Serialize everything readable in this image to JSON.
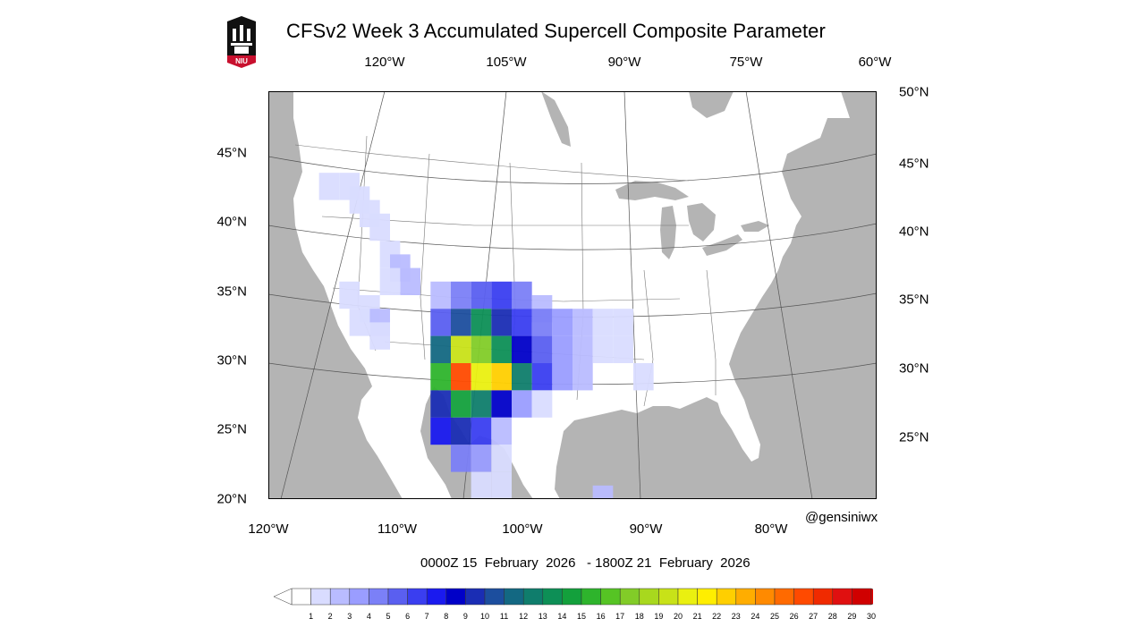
{
  "title": "CFSv2 Week 3 Accumulated Supercell Composite Parameter",
  "logo": {
    "text": "NIU",
    "icon": "niu-castle-logo"
  },
  "top_lon_labels": [
    "120°W",
    "105°W",
    "90°W",
    "75°W",
    "60°W"
  ],
  "bottom_lon_labels": [
    "120°W",
    "110°W",
    "100°W",
    "90°W",
    "80°W"
  ],
  "left_lat_labels": [
    "45°N",
    "40°N",
    "35°N",
    "30°N",
    "25°N",
    "20°N"
  ],
  "right_lat_labels": [
    "50°N",
    "45°N",
    "40°N",
    "35°N",
    "30°N",
    "25°N"
  ],
  "credit": "@gensiniwx",
  "date_range": "0000Z 15  February  2026   - 1800Z 21  February  2026",
  "colorbar": {
    "ticks": [
      "1",
      "2",
      "3",
      "4",
      "5",
      "6",
      "7",
      "8",
      "9",
      "10",
      "11",
      "12",
      "13",
      "14",
      "15",
      "16",
      "17",
      "18",
      "19",
      "20",
      "21",
      "22",
      "23",
      "24",
      "25",
      "26",
      "27",
      "28",
      "29",
      "30"
    ],
    "colors": [
      "#ffffff",
      "#d9dcff",
      "#b9bcff",
      "#9a9dff",
      "#7b80f7",
      "#5a5ff0",
      "#3a3ef0",
      "#1a1aef",
      "#0000c8",
      "#1a2db4",
      "#1c4e9e",
      "#136882",
      "#0f7d6c",
      "#0d8f56",
      "#13a03c",
      "#2eb42c",
      "#56c424",
      "#82cc28",
      "#a8d81e",
      "#c8e218",
      "#eaf010",
      "#ffee00",
      "#ffcf00",
      "#ffad00",
      "#ff8a00",
      "#ff6a00",
      "#ff4a00",
      "#f02a00",
      "#e01010",
      "#d00000"
    ],
    "range": [
      1,
      30
    ]
  },
  "map": {
    "extent": {
      "lon": [
        -120,
        -60
      ],
      "lat": [
        20,
        50
      ]
    },
    "land_color": "#ffffff",
    "ocean_color": "#b4b4b4",
    "scp_field": [
      {
        "lon": -114,
        "lat": 43,
        "v": 2
      },
      {
        "lon": -112,
        "lat": 43,
        "v": 2
      },
      {
        "lon": -111,
        "lat": 42,
        "v": 2
      },
      {
        "lon": -110,
        "lat": 41,
        "v": 2
      },
      {
        "lon": -109,
        "lat": 40,
        "v": 2
      },
      {
        "lon": -108,
        "lat": 38,
        "v": 2
      },
      {
        "lon": -107,
        "lat": 37,
        "v": 3
      },
      {
        "lon": -106,
        "lat": 36,
        "v": 3
      },
      {
        "lon": -108,
        "lat": 36,
        "v": 2
      },
      {
        "lon": -112,
        "lat": 35,
        "v": 2
      },
      {
        "lon": -110,
        "lat": 34,
        "v": 2
      },
      {
        "lon": -109,
        "lat": 33,
        "v": 3
      },
      {
        "lon": -111,
        "lat": 33,
        "v": 2
      },
      {
        "lon": -109,
        "lat": 32,
        "v": 2
      },
      {
        "lon": -103,
        "lat": 35,
        "v": 3
      },
      {
        "lon": -101,
        "lat": 35,
        "v": 5
      },
      {
        "lon": -99,
        "lat": 35,
        "v": 6
      },
      {
        "lon": -97,
        "lat": 35,
        "v": 7
      },
      {
        "lon": -95,
        "lat": 35,
        "v": 5
      },
      {
        "lon": -93,
        "lat": 34,
        "v": 3
      },
      {
        "lon": -103,
        "lat": 33,
        "v": 6
      },
      {
        "lon": -101,
        "lat": 33,
        "v": 11
      },
      {
        "lon": -99,
        "lat": 33,
        "v": 14
      },
      {
        "lon": -97,
        "lat": 33,
        "v": 10
      },
      {
        "lon": -95,
        "lat": 33,
        "v": 7
      },
      {
        "lon": -93,
        "lat": 33,
        "v": 5
      },
      {
        "lon": -91,
        "lat": 33,
        "v": 4
      },
      {
        "lon": -89,
        "lat": 33,
        "v": 3
      },
      {
        "lon": -87,
        "lat": 33,
        "v": 2
      },
      {
        "lon": -85,
        "lat": 33,
        "v": 2
      },
      {
        "lon": -103,
        "lat": 31,
        "v": 12
      },
      {
        "lon": -101,
        "lat": 31,
        "v": 20
      },
      {
        "lon": -99,
        "lat": 31,
        "v": 18
      },
      {
        "lon": -97,
        "lat": 31,
        "v": 14
      },
      {
        "lon": -95,
        "lat": 31,
        "v": 9
      },
      {
        "lon": -93,
        "lat": 31,
        "v": 6
      },
      {
        "lon": -91,
        "lat": 31,
        "v": 4
      },
      {
        "lon": -89,
        "lat": 31,
        "v": 3
      },
      {
        "lon": -87,
        "lat": 31,
        "v": 2
      },
      {
        "lon": -85,
        "lat": 31,
        "v": 2
      },
      {
        "lon": -103,
        "lat": 29,
        "v": 16
      },
      {
        "lon": -101,
        "lat": 29,
        "v": 27
      },
      {
        "lon": -99,
        "lat": 29,
        "v": 21
      },
      {
        "lon": -97,
        "lat": 29,
        "v": 23
      },
      {
        "lon": -95,
        "lat": 29,
        "v": 13
      },
      {
        "lon": -93,
        "lat": 29,
        "v": 7
      },
      {
        "lon": -91,
        "lat": 29,
        "v": 4
      },
      {
        "lon": -89,
        "lat": 29,
        "v": 3
      },
      {
        "lon": -83,
        "lat": 29,
        "v": 2
      },
      {
        "lon": -103,
        "lat": 27,
        "v": 10
      },
      {
        "lon": -101,
        "lat": 27,
        "v": 15
      },
      {
        "lon": -99,
        "lat": 27,
        "v": 13
      },
      {
        "lon": -97,
        "lat": 27,
        "v": 9
      },
      {
        "lon": -95,
        "lat": 27,
        "v": 4
      },
      {
        "lon": -93,
        "lat": 27,
        "v": 2
      },
      {
        "lon": -103,
        "lat": 25,
        "v": 8
      },
      {
        "lon": -101,
        "lat": 25,
        "v": 10
      },
      {
        "lon": -99,
        "lat": 25,
        "v": 7
      },
      {
        "lon": -97,
        "lat": 25,
        "v": 3
      },
      {
        "lon": -101,
        "lat": 23,
        "v": 5
      },
      {
        "lon": -99,
        "lat": 23,
        "v": 4
      },
      {
        "lon": -97,
        "lat": 23,
        "v": 2
      },
      {
        "lon": -99,
        "lat": 21,
        "v": 2
      },
      {
        "lon": -97,
        "lat": 21,
        "v": 2
      },
      {
        "lon": -87,
        "lat": 20,
        "v": 3
      }
    ]
  }
}
